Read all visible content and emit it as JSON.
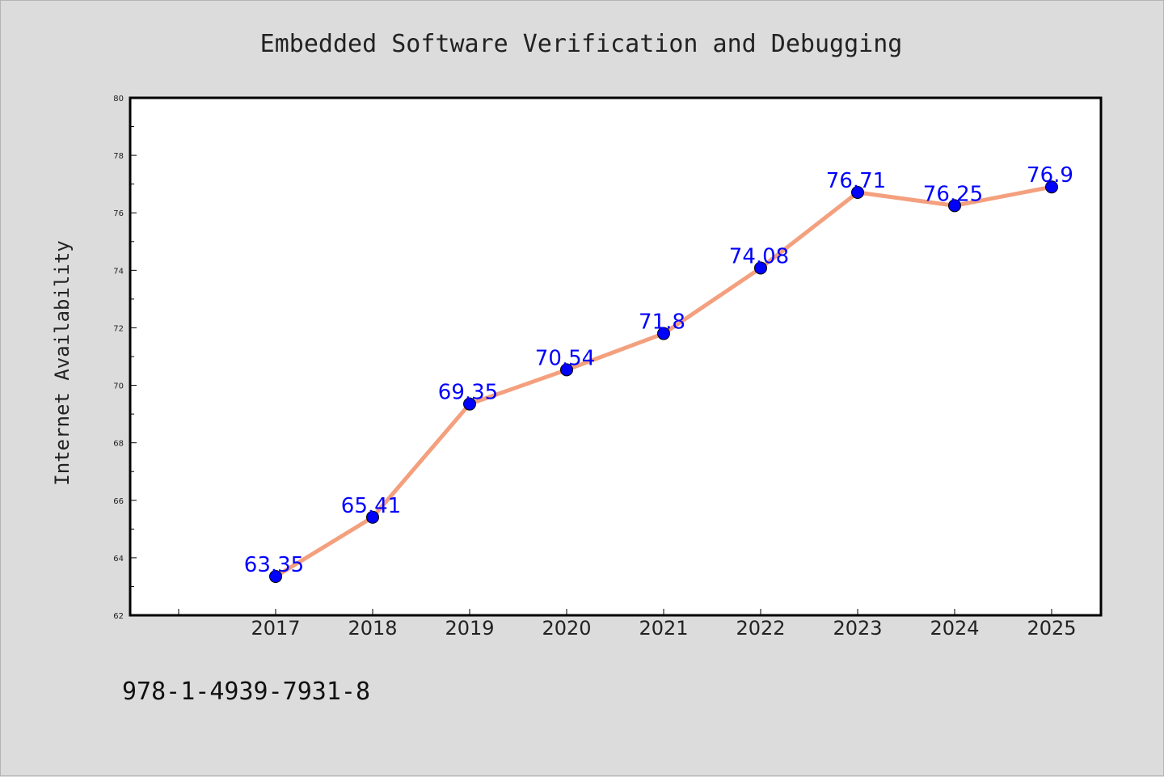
{
  "footer": {
    "code": "978-1-4939-7931-8"
  },
  "colors": {
    "line": "#f4a07e",
    "marker": "#0000ff",
    "label": "#0000ff",
    "background": "#dcdcdc",
    "plot": "#ffffff"
  },
  "chart_data": {
    "type": "line",
    "title": "Embedded Software Verification and Debugging",
    "xlabel": "",
    "ylabel": "Internet Availability",
    "categories": [
      "2017",
      "2018",
      "2019",
      "2020",
      "2021",
      "2022",
      "2023",
      "2024",
      "2025"
    ],
    "values": [
      63.35,
      65.41,
      69.35,
      70.54,
      71.8,
      74.08,
      76.71,
      76.25,
      76.9
    ],
    "data_labels": [
      "63.35",
      "65.41",
      "69.35",
      "70.54",
      "71.8",
      "74.08",
      "76.71",
      "76.25",
      "76.9"
    ],
    "ylim": [
      62,
      80
    ],
    "yticks": [
      62,
      64,
      66,
      68,
      70,
      72,
      74,
      76,
      78,
      80
    ],
    "ytick_labels": [
      "62",
      "64",
      "66",
      "68",
      "70",
      "72",
      "74",
      "76",
      "78",
      "80"
    ],
    "grid": false,
    "legend": "none"
  }
}
